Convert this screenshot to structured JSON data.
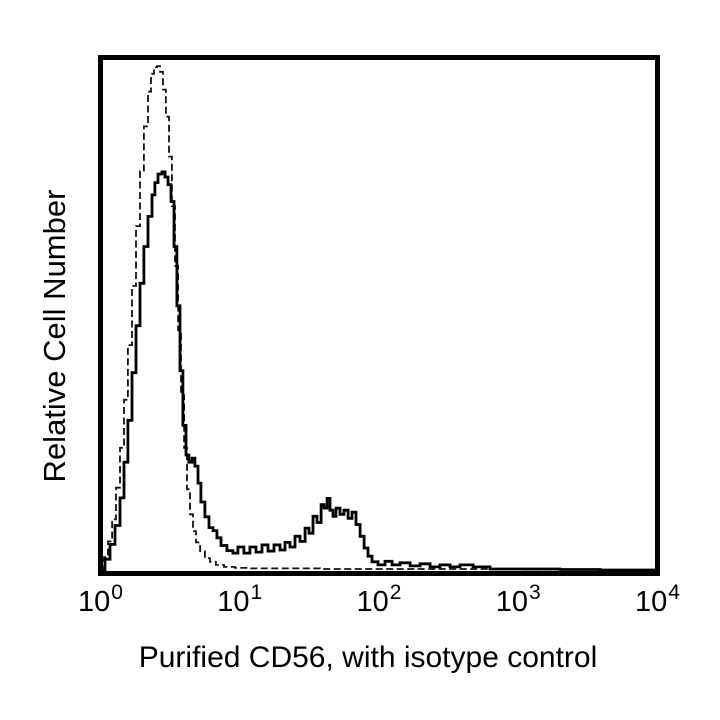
{
  "page": {
    "background": "#ffffff"
  },
  "chart_data": {
    "type": "line",
    "subtype": "flow_cytometry_overlay_histogram",
    "title": "",
    "xlabel": "Purified CD56, with isotype control",
    "ylabel": "Relative Cell Number",
    "x_scale": "log10",
    "x_log_range": [
      0,
      4
    ],
    "ylim": [
      0,
      100
    ],
    "grid": false,
    "legend": "none",
    "frame_color": "#000000",
    "x_ticks": [
      {
        "base": "10",
        "exp": "0",
        "log_value": 0
      },
      {
        "base": "10",
        "exp": "1",
        "log_value": 1
      },
      {
        "base": "10",
        "exp": "2",
        "log_value": 2
      },
      {
        "base": "10",
        "exp": "3",
        "log_value": 3
      },
      {
        "base": "10",
        "exp": "4",
        "log_value": 4
      }
    ],
    "series": [
      {
        "name": "Isotype control",
        "line_style": "dashed",
        "color": "#111111",
        "stroke_width": 1.8,
        "dash": "7 3.5",
        "points": [
          [
            0,
            0.4
          ],
          [
            0.025,
            2.7
          ],
          [
            0.054,
            5.8
          ],
          [
            0.083,
            10.1
          ],
          [
            0.111,
            16.3
          ],
          [
            0.14,
            24.1
          ],
          [
            0.169,
            33.5
          ],
          [
            0.197,
            44.2
          ],
          [
            0.226,
            55.8
          ],
          [
            0.255,
            67.5
          ],
          [
            0.284,
            78.2
          ],
          [
            0.312,
            87.0
          ],
          [
            0.341,
            93.8
          ],
          [
            0.363,
            97.3
          ],
          [
            0.384,
            98.6
          ],
          [
            0.406,
            98.8
          ],
          [
            0.427,
            97.7
          ],
          [
            0.449,
            94.2
          ],
          [
            0.47,
            88.9
          ],
          [
            0.492,
            81.1
          ],
          [
            0.513,
            71.4
          ],
          [
            0.535,
            59.7
          ],
          [
            0.557,
            47.1
          ],
          [
            0.578,
            34.4
          ],
          [
            0.6,
            24.1
          ],
          [
            0.621,
            16.0
          ],
          [
            0.643,
            11.1
          ],
          [
            0.664,
            7.8
          ],
          [
            0.686,
            5.6
          ],
          [
            0.715,
            3.9
          ],
          [
            0.75,
            2.5
          ],
          [
            0.786,
            1.8
          ],
          [
            0.829,
            1.2
          ],
          [
            0.887,
            0.8
          ],
          [
            0.966,
            0.6
          ],
          [
            1.073,
            0.5
          ],
          [
            1.289,
            0.5
          ],
          [
            1.576,
            0.4
          ],
          [
            1.864,
            0.4
          ],
          [
            2.151,
            0.4
          ],
          [
            2.582,
            0.4
          ],
          [
            3.013,
            0.3
          ],
          [
            3.587,
            0.2
          ],
          [
            4,
            0.2
          ]
        ]
      },
      {
        "name": "Purified CD56",
        "line_style": "solid",
        "color": "#000000",
        "stroke_width": 2.8,
        "dash": "",
        "points": [
          [
            0,
            0
          ],
          [
            0.032,
            2.3
          ],
          [
            0.068,
            5.2
          ],
          [
            0.104,
            8.9
          ],
          [
            0.14,
            14.3
          ],
          [
            0.169,
            21.3
          ],
          [
            0.197,
            29.5
          ],
          [
            0.226,
            38.8
          ],
          [
            0.255,
            48.0
          ],
          [
            0.284,
            56.3
          ],
          [
            0.312,
            63.5
          ],
          [
            0.341,
            69.4
          ],
          [
            0.37,
            73.6
          ],
          [
            0.391,
            76.0
          ],
          [
            0.413,
            77.7
          ],
          [
            0.442,
            78.1
          ],
          [
            0.463,
            77.1
          ],
          [
            0.485,
            75.6
          ],
          [
            0.506,
            72.3
          ],
          [
            0.528,
            63.5
          ],
          [
            0.549,
            51.9
          ],
          [
            0.571,
            39.2
          ],
          [
            0.592,
            28.5
          ],
          [
            0.614,
            22.7
          ],
          [
            0.635,
            21.3
          ],
          [
            0.657,
            22.1
          ],
          [
            0.678,
            20.5
          ],
          [
            0.7,
            17.2
          ],
          [
            0.721,
            13.5
          ],
          [
            0.75,
            10.6
          ],
          [
            0.779,
            8.5
          ],
          [
            0.808,
            7.9
          ],
          [
            0.836,
            6.5
          ],
          [
            0.865,
            5.0
          ],
          [
            0.908,
            4.0
          ],
          [
            0.951,
            3.5
          ],
          [
            0.987,
            4.7
          ],
          [
            1.03,
            3.5
          ],
          [
            1.073,
            4.7
          ],
          [
            1.117,
            3.7
          ],
          [
            1.16,
            5.1
          ],
          [
            1.203,
            3.9
          ],
          [
            1.246,
            5.1
          ],
          [
            1.289,
            4.1
          ],
          [
            1.325,
            5.6
          ],
          [
            1.361,
            4.7
          ],
          [
            1.397,
            6.8
          ],
          [
            1.433,
            5.8
          ],
          [
            1.469,
            8.4
          ],
          [
            1.497,
            7.4
          ],
          [
            1.526,
            10.7
          ],
          [
            1.555,
            9.5
          ],
          [
            1.584,
            13.0
          ],
          [
            1.605,
            12.3
          ],
          [
            1.627,
            14.2
          ],
          [
            1.648,
            11.9
          ],
          [
            1.67,
            10.7
          ],
          [
            1.691,
            12.3
          ],
          [
            1.72,
            11.1
          ],
          [
            1.749,
            11.9
          ],
          [
            1.778,
            10.3
          ],
          [
            1.806,
            11.5
          ],
          [
            1.835,
            9.1
          ],
          [
            1.864,
            6.8
          ],
          [
            1.893,
            4.5
          ],
          [
            1.921,
            2.9
          ],
          [
            1.95,
            1.8
          ],
          [
            1.993,
            1.2
          ],
          [
            2.043,
            1.9
          ],
          [
            2.094,
            1.2
          ],
          [
            2.151,
            1.6
          ],
          [
            2.223,
            1.0
          ],
          [
            2.295,
            1.4
          ],
          [
            2.367,
            0.8
          ],
          [
            2.438,
            1.2
          ],
          [
            2.51,
            0.8
          ],
          [
            2.582,
            1.2
          ],
          [
            2.675,
            0.8
          ],
          [
            2.797,
            0.4
          ],
          [
            3.013,
            0.4
          ],
          [
            3.3,
            0.3
          ],
          [
            3.587,
            0.2
          ],
          [
            4,
            0.2
          ]
        ]
      }
    ]
  }
}
